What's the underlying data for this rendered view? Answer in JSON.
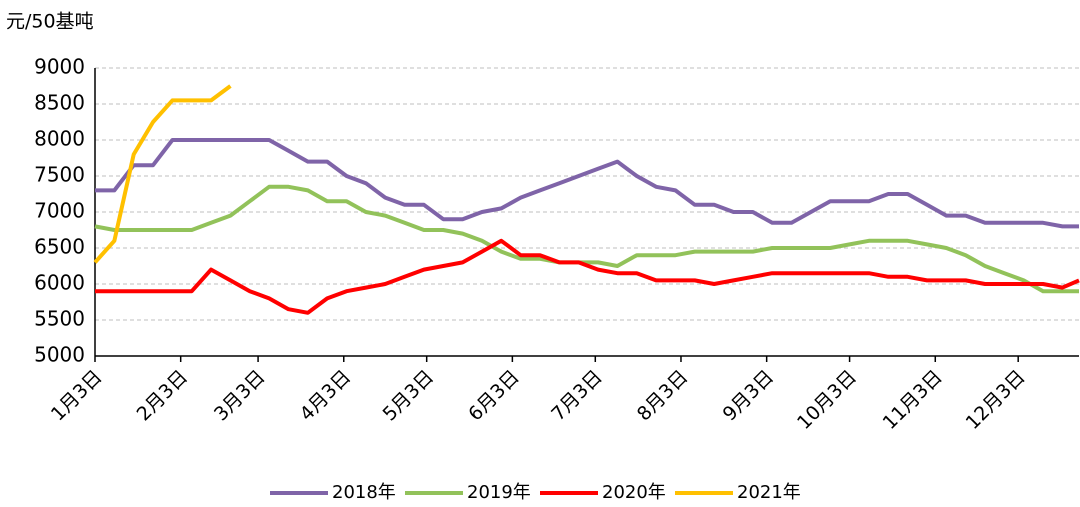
{
  "chart_data": {
    "type": "line",
    "y_axis_label": "元/50基吨",
    "x": [
      0,
      7,
      14,
      21,
      28,
      35,
      42,
      49,
      56,
      63,
      70,
      77,
      84,
      91,
      98,
      105,
      112,
      119,
      126,
      133,
      140,
      147,
      154,
      161,
      168,
      175,
      182,
      189,
      196,
      203,
      210,
      217,
      224,
      231,
      238,
      245,
      252,
      259,
      266,
      273,
      280,
      287,
      294,
      301,
      308,
      315,
      322,
      329,
      336,
      343,
      350,
      356
    ],
    "xlim": [
      0,
      356
    ],
    "xticks": [
      {
        "value": 0,
        "label": "1月3日"
      },
      {
        "value": 31,
        "label": "2月3日"
      },
      {
        "value": 59,
        "label": "3月3日"
      },
      {
        "value": 90,
        "label": "4月3日"
      },
      {
        "value": 120,
        "label": "5月3日"
      },
      {
        "value": 151,
        "label": "6月3日"
      },
      {
        "value": 181,
        "label": "7月3日"
      },
      {
        "value": 212,
        "label": "8月3日"
      },
      {
        "value": 243,
        "label": "9月3日"
      },
      {
        "value": 273,
        "label": "10月3日"
      },
      {
        "value": 304,
        "label": "11月3日"
      },
      {
        "value": 334,
        "label": "12月3日"
      }
    ],
    "ylim": [
      5000,
      9000
    ],
    "yticks": [
      5000,
      5500,
      6000,
      6500,
      7000,
      7500,
      8000,
      8500,
      9000
    ],
    "grid": true,
    "legend": "bottom",
    "series": [
      {
        "name": "2018年",
        "color": "#7f64a8",
        "values": [
          7300,
          7300,
          7650,
          7650,
          8000,
          8000,
          8000,
          8000,
          8000,
          8000,
          7850,
          7700,
          7700,
          7500,
          7400,
          7200,
          7100,
          7100,
          6900,
          6900,
          7000,
          7050,
          7200,
          7300,
          7400,
          7500,
          7600,
          7700,
          7500,
          7350,
          7300,
          7100,
          7100,
          7000,
          7000,
          6850,
          6850,
          7000,
          7150,
          7150,
          7150,
          7250,
          7250,
          7100,
          6950,
          6950,
          6850,
          6850,
          6850,
          6850,
          6800,
          6800
        ]
      },
      {
        "name": "2019年",
        "color": "#92c25a",
        "values": [
          6800,
          6750,
          6750,
          6750,
          6750,
          6750,
          6850,
          6950,
          7150,
          7350,
          7350,
          7300,
          7150,
          7150,
          7000,
          6950,
          6850,
          6750,
          6750,
          6700,
          6600,
          6450,
          6350,
          6350,
          6300,
          6300,
          6300,
          6250,
          6400,
          6400,
          6400,
          6450,
          6450,
          6450,
          6450,
          6500,
          6500,
          6500,
          6500,
          6550,
          6600,
          6600,
          6600,
          6550,
          6500,
          6400,
          6250,
          6150,
          6050,
          5900,
          5900,
          5900
        ]
      },
      {
        "name": "2020年",
        "color": "#ff0000",
        "values": [
          5900,
          5900,
          5900,
          5900,
          5900,
          5900,
          6200,
          6050,
          5900,
          5800,
          5650,
          5600,
          5800,
          5900,
          5950,
          6000,
          6100,
          6200,
          6250,
          6300,
          6450,
          6600,
          6400,
          6400,
          6300,
          6300,
          6200,
          6150,
          6150,
          6050,
          6050,
          6050,
          6000,
          6050,
          6100,
          6150,
          6150,
          6150,
          6150,
          6150,
          6150,
          6100,
          6100,
          6050,
          6050,
          6050,
          6000,
          6000,
          6000,
          6000,
          5950,
          6050
        ]
      },
      {
        "name": "2021年",
        "color": "#ffc000",
        "values": [
          6300,
          6600,
          7800,
          8250,
          8550,
          8550,
          8550,
          8750,
          null,
          null,
          null,
          null,
          null,
          null,
          null,
          null,
          null,
          null,
          null,
          null,
          null,
          null,
          null,
          null,
          null,
          null,
          null,
          null,
          null,
          null,
          null,
          null,
          null,
          null,
          null,
          null,
          null,
          null,
          null,
          null,
          null,
          null,
          null,
          null,
          null,
          null,
          null,
          null,
          null,
          null,
          null,
          null
        ]
      }
    ]
  }
}
